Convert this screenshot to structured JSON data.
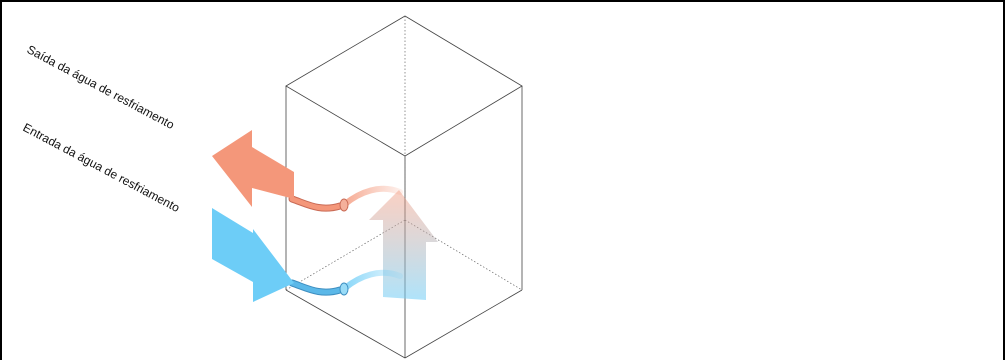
{
  "labels": {
    "outlet": "Saída da água de resfriamento",
    "inlet": "Entrada da água de resfriamento"
  },
  "colors": {
    "hot": "#f4977a",
    "hot_pipe": "#e8826a",
    "cold": "#6dcdf7",
    "cold_pipe": "#5bb8e8",
    "line": "#444444"
  }
}
